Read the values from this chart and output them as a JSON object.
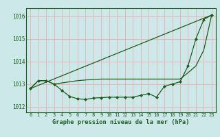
{
  "title": "Graphe pression niveau de la mer (hPa)",
  "bg_color": "#cce8e8",
  "grid_color": "#e8b4b4",
  "line_color": "#1a5c1a",
  "marker_color": "#1a5c1a",
  "xlim": [
    -0.5,
    23.5
  ],
  "ylim": [
    1011.75,
    1016.35
  ],
  "yticks": [
    1012,
    1013,
    1014,
    1015,
    1016
  ],
  "xticks": [
    0,
    1,
    2,
    3,
    4,
    5,
    6,
    7,
    8,
    9,
    10,
    11,
    12,
    13,
    14,
    15,
    16,
    17,
    18,
    19,
    20,
    21,
    22,
    23
  ],
  "series": [
    {
      "x": [
        0,
        1,
        2,
        3,
        4,
        5,
        6,
        7,
        8,
        9,
        10,
        11,
        12,
        13,
        14,
        15,
        16,
        17,
        18,
        19,
        20,
        21,
        22,
        23
      ],
      "y": [
        1012.8,
        1013.15,
        1013.15,
        1013.0,
        1012.72,
        1012.45,
        1012.35,
        1012.32,
        1012.38,
        1012.4,
        1012.42,
        1012.42,
        1012.42,
        1012.42,
        1012.5,
        1012.58,
        1012.42,
        1012.9,
        1013.0,
        1013.1,
        1013.8,
        1015.0,
        1015.85,
        1016.05
      ],
      "marker": true
    },
    {
      "x": [
        0,
        1,
        2,
        3,
        4,
        5,
        6,
        7,
        8,
        9,
        10,
        11,
        12,
        13,
        14,
        15,
        16,
        17,
        18,
        19,
        20,
        21,
        22,
        23
      ],
      "y": [
        1012.8,
        1013.15,
        1013.15,
        1013.0,
        1013.05,
        1013.1,
        1013.15,
        1013.18,
        1013.2,
        1013.22,
        1013.22,
        1013.22,
        1013.22,
        1013.22,
        1013.22,
        1013.22,
        1013.22,
        1013.22,
        1013.22,
        1013.22,
        1013.5,
        1013.8,
        1014.5,
        1016.05
      ],
      "marker": false
    },
    {
      "x": [
        0,
        23
      ],
      "y": [
        1012.8,
        1016.05
      ],
      "marker": false
    }
  ]
}
